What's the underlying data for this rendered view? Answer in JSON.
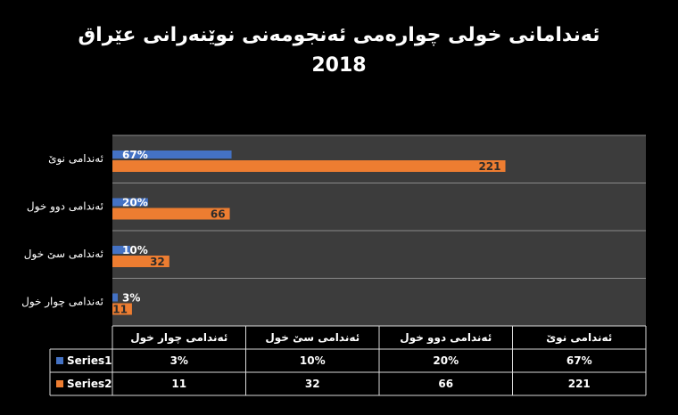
{
  "chart_data": {
    "type": "bar",
    "orientation": "horizontal",
    "title_line1": "ئەندامانی خولی چوارەمی ئەنجومەنی نوێنەرانی عێراق",
    "title_line2": "2018",
    "categories": [
      "ئەندامی نوێ",
      "ئەندامی دوو خول",
      "ئەندامی سێ خول",
      "ئەندامی چوار خول"
    ],
    "series": [
      {
        "name": "Series1",
        "values": [
          67,
          20,
          10,
          3
        ],
        "labels": [
          "67%",
          "20%",
          "10%",
          "3%"
        ],
        "color": "#4472c4"
      },
      {
        "name": "Series2",
        "values": [
          221,
          66,
          32,
          11
        ],
        "labels": [
          "221",
          "66",
          "32",
          "11"
        ],
        "color": "#ed7d31"
      }
    ],
    "xlim": [
      0,
      300
    ],
    "grid": true,
    "data_table": true,
    "table_columns": [
      "ئەندامی چوار خول",
      "ئەندامی سێ خول",
      "ئەندامی دوو خول",
      "ئەندامی نوێ"
    ],
    "table_rows": [
      {
        "name": "Series1",
        "cells": [
          "3%",
          "10%",
          "20%",
          "67%"
        ],
        "color": "#4472c4"
      },
      {
        "name": "Series2",
        "cells": [
          "11",
          "32",
          "66",
          "221"
        ],
        "color": "#ed7d31"
      }
    ],
    "colors": {
      "background": "#000000",
      "plot_area": "#3c3c3c",
      "grid": "#8a8a8a",
      "table_border": "#d9d9d9"
    }
  }
}
